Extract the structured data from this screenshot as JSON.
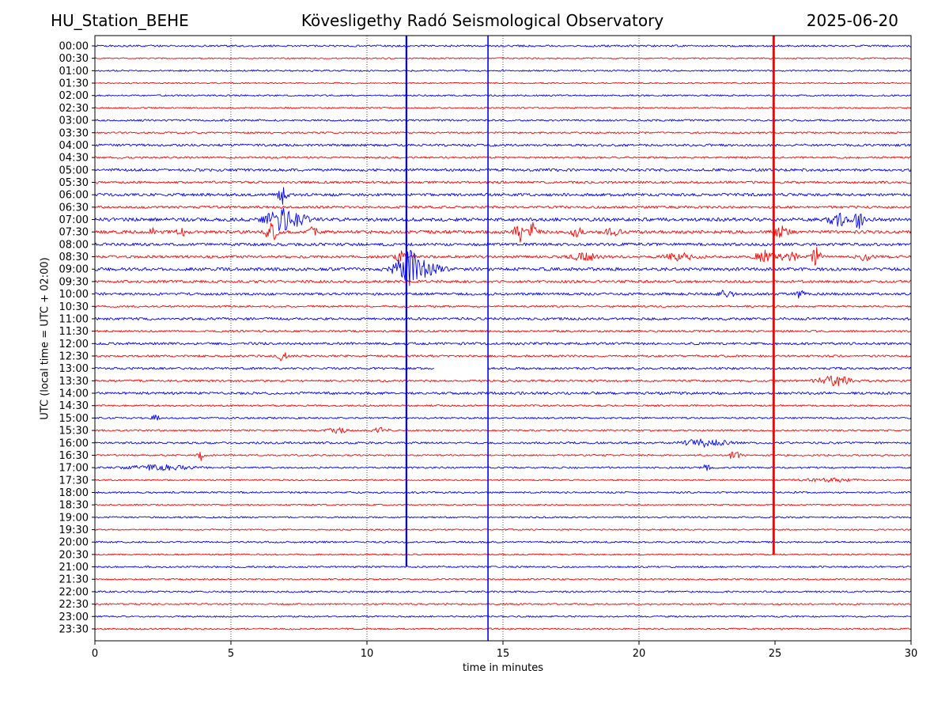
{
  "header": {
    "station": "HU_Station_BEHE",
    "observatory": "Kövesligethy Radó Seismological Observatory",
    "date": "2025-06-20"
  },
  "chart_data": {
    "type": "line",
    "subtype": "helicorder",
    "xlabel": "time in minutes",
    "ylabel": "UTC (local time = UTC + 02:00)",
    "xlim": [
      0,
      30
    ],
    "x_ticks": [
      0,
      5,
      10,
      15,
      20,
      25,
      30
    ],
    "x_grid_dotted": [
      5,
      10,
      15,
      20
    ],
    "row_labels": [
      "00:00",
      "00:30",
      "01:00",
      "01:30",
      "02:00",
      "02:30",
      "03:00",
      "03:30",
      "04:00",
      "04:30",
      "05:00",
      "05:30",
      "06:00",
      "06:30",
      "07:00",
      "07:30",
      "08:00",
      "08:30",
      "09:00",
      "09:30",
      "10:00",
      "10:30",
      "11:00",
      "11:30",
      "12:00",
      "12:30",
      "13:00",
      "13:30",
      "14:00",
      "14:30",
      "15:00",
      "15:30",
      "16:00",
      "16:30",
      "17:00",
      "17:30",
      "18:00",
      "18:30",
      "19:00",
      "19:30",
      "20:00",
      "20:30",
      "21:00",
      "21:30",
      "22:00",
      "22:30",
      "23:00",
      "23:30"
    ],
    "trace_colors": [
      "#0000ff",
      "#ff0000"
    ],
    "noise_by_row": [
      1.2,
      0.8,
      1.0,
      0.8,
      1.0,
      0.9,
      1.2,
      1.1,
      1.5,
      1.2,
      1.7,
      1.5,
      1.8,
      1.5,
      2.2,
      2.0,
      1.8,
      1.7,
      2.0,
      1.6,
      1.6,
      1.2,
      1.6,
      1.3,
      1.6,
      1.3,
      1.4,
      1.3,
      1.6,
      1.1,
      1.1,
      1.1,
      1.3,
      1.0,
      1.1,
      0.9,
      1.1,
      0.9,
      1.0,
      0.9,
      1.1,
      0.9,
      1.1,
      1.0,
      1.1,
      1.0,
      1.0,
      1.0
    ],
    "events": [
      {
        "row": 14,
        "t": 6.8,
        "dur": 0.9,
        "amp": 14
      },
      {
        "row": 14,
        "t": 7.6,
        "dur": 0.5,
        "amp": 9
      },
      {
        "row": 12,
        "t": 6.9,
        "dur": 0.3,
        "amp": 12
      },
      {
        "row": 15,
        "t": 2.1,
        "dur": 0.25,
        "amp": 6
      },
      {
        "row": 15,
        "t": 3.2,
        "dur": 0.35,
        "amp": 6
      },
      {
        "row": 15,
        "t": 6.5,
        "dur": 0.5,
        "amp": 10
      },
      {
        "row": 15,
        "t": 8.0,
        "dur": 0.4,
        "amp": 5
      },
      {
        "row": 15,
        "t": 15.6,
        "dur": 0.35,
        "amp": 12
      },
      {
        "row": 15,
        "t": 16.1,
        "dur": 0.3,
        "amp": 14
      },
      {
        "row": 15,
        "t": 17.7,
        "dur": 0.4,
        "amp": 6
      },
      {
        "row": 15,
        "t": 19.0,
        "dur": 0.6,
        "amp": 4
      },
      {
        "row": 15,
        "t": 25.2,
        "dur": 0.5,
        "amp": 8
      },
      {
        "row": 17,
        "t": 11.2,
        "dur": 0.3,
        "amp": 10
      },
      {
        "row": 18,
        "t": 11.5,
        "dur": 0.9,
        "amp": 22
      },
      {
        "row": 18,
        "t": 12.2,
        "dur": 1.2,
        "amp": 6
      },
      {
        "row": 17,
        "t": 18.0,
        "dur": 1.0,
        "amp": 4
      },
      {
        "row": 17,
        "t": 21.5,
        "dur": 1.0,
        "amp": 4
      },
      {
        "row": 17,
        "t": 24.6,
        "dur": 0.6,
        "amp": 8
      },
      {
        "row": 17,
        "t": 25.5,
        "dur": 0.6,
        "amp": 6
      },
      {
        "row": 17,
        "t": 26.5,
        "dur": 0.3,
        "amp": 12
      },
      {
        "row": 17,
        "t": 28.3,
        "dur": 0.5,
        "amp": 4
      },
      {
        "row": 14,
        "t": 27.3,
        "dur": 0.6,
        "amp": 8
      },
      {
        "row": 14,
        "t": 28.1,
        "dur": 0.3,
        "amp": 14
      },
      {
        "row": 20,
        "t": 23.2,
        "dur": 0.6,
        "amp": 4
      },
      {
        "row": 20,
        "t": 25.9,
        "dur": 0.3,
        "amp": 5
      },
      {
        "row": 27,
        "t": 27.2,
        "dur": 1.2,
        "amp": 6
      },
      {
        "row": 30,
        "t": 2.2,
        "dur": 0.3,
        "amp": 4
      },
      {
        "row": 31,
        "t": 8.9,
        "dur": 0.6,
        "amp": 4
      },
      {
        "row": 31,
        "t": 10.5,
        "dur": 0.5,
        "amp": 4
      },
      {
        "row": 32,
        "t": 22.4,
        "dur": 1.5,
        "amp": 5
      },
      {
        "row": 33,
        "t": 3.9,
        "dur": 0.2,
        "amp": 6
      },
      {
        "row": 33,
        "t": 23.5,
        "dur": 0.4,
        "amp": 5
      },
      {
        "row": 34,
        "t": 2.4,
        "dur": 2.2,
        "amp": 3
      },
      {
        "row": 34,
        "t": 22.5,
        "dur": 0.3,
        "amp": 4
      },
      {
        "row": 35,
        "t": 27.0,
        "dur": 2.0,
        "amp": 2
      },
      {
        "row": 25,
        "t": 6.9,
        "dur": 0.3,
        "amp": 6
      }
    ],
    "spikes": [
      {
        "t": 11.45,
        "top_row": 0,
        "bottom_row": 42,
        "color": "#0000ff",
        "width": 2.2
      },
      {
        "t": 14.45,
        "top_row": 0,
        "bottom_row": 48,
        "color": "#0000ff",
        "width": 1.6
      },
      {
        "t": 24.95,
        "top_row": 0,
        "bottom_row": 41,
        "color": "#ff0000",
        "width": 3.0
      }
    ],
    "gaps": [
      {
        "row": 26,
        "t_start": 12.5,
        "t_end": 14.4
      }
    ]
  }
}
